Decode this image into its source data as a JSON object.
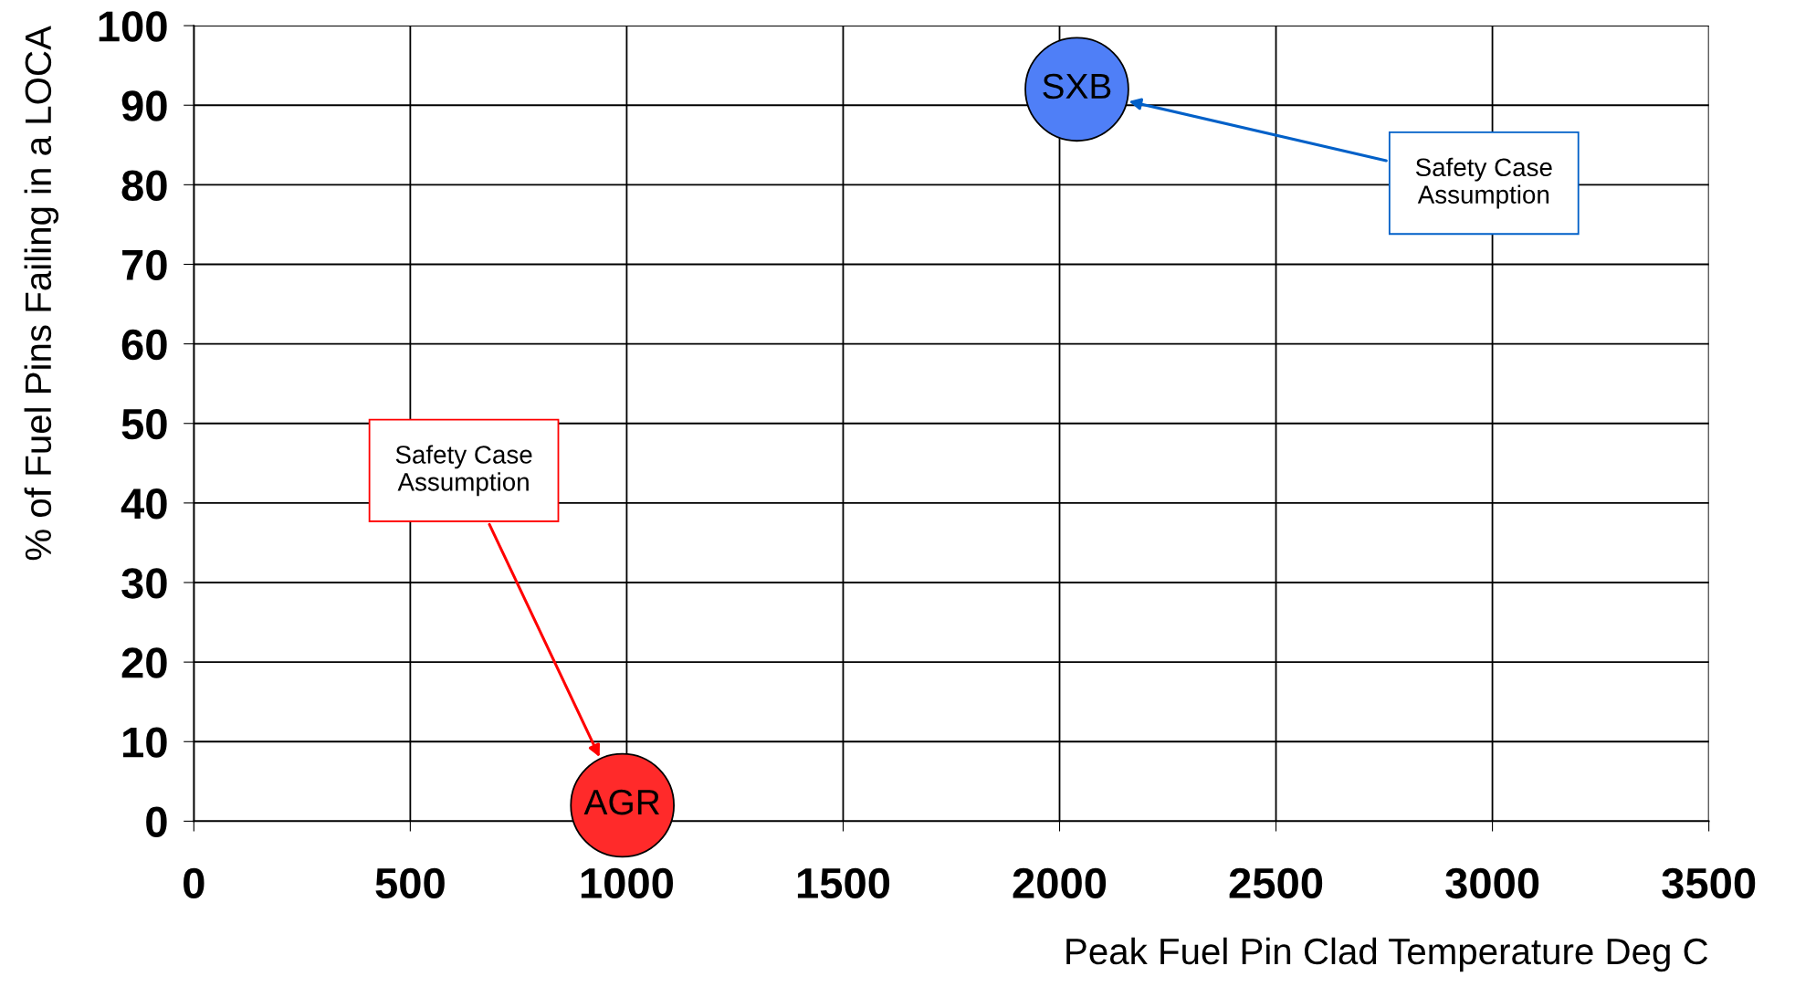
{
  "chart_data": {
    "type": "scatter",
    "xlabel": "Peak Fuel Pin Clad Temperature Deg C",
    "ylabel": "% of Fuel Pins Failing in a LOCA",
    "xlim": [
      0,
      3500
    ],
    "xticks": [
      0,
      500,
      1000,
      1500,
      2000,
      2500,
      3000,
      3500
    ],
    "ylim": [
      0,
      100
    ],
    "yticks": [
      0,
      10,
      20,
      30,
      40,
      50,
      60,
      70,
      80,
      90,
      100
    ],
    "grid": true,
    "marker": "circle",
    "series": [
      {
        "name": "SXB",
        "color": "#4f7ff7",
        "x": [
          2040
        ],
        "values": [
          92
        ]
      },
      {
        "name": "AGR",
        "color": "#ff2a2a",
        "x": [
          990
        ],
        "values": [
          2
        ]
      }
    ],
    "annotations": [
      "Safety Case Assumption",
      "Safety Case Assumption"
    ]
  }
}
